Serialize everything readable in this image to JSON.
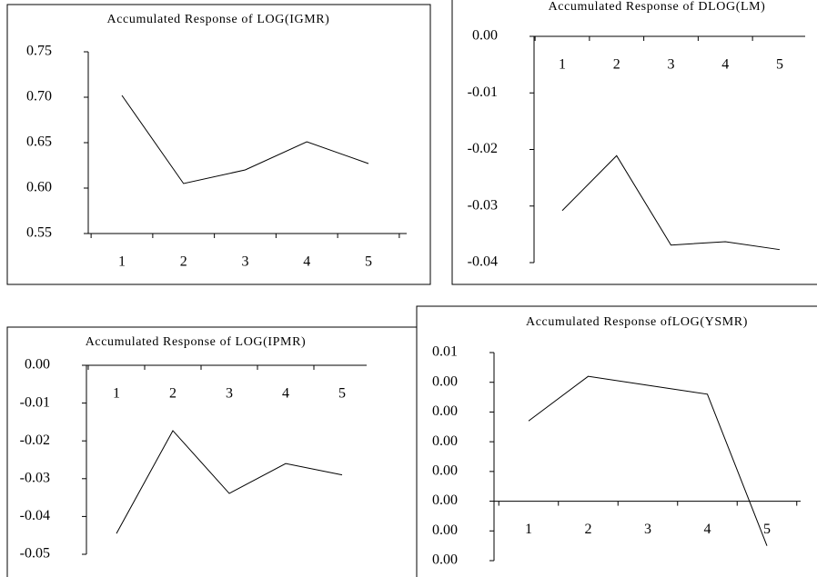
{
  "chart_data": [
    {
      "type": "line",
      "title": "Accumulated Response of LOG(IGMR)",
      "categories": [
        "1",
        "2",
        "3",
        "4",
        "5"
      ],
      "values": [
        0.702,
        0.605,
        0.62,
        0.651,
        0.627
      ],
      "color": "#000000",
      "ylim": [
        0.55,
        0.75
      ],
      "yticks": [
        0.55,
        {
          "value": 0.6,
          "label": "0.60"
        },
        0.65,
        {
          "value": 0.7,
          "label": "0.70"
        },
        0.75
      ]
    },
    {
      "type": "line",
      "title": "Accumulated Response of DLOG(LM)",
      "categories": [
        "1",
        "2",
        "3",
        "4",
        "5"
      ],
      "values": [
        -0.0308,
        -0.0211,
        -0.0369,
        -0.0363,
        -0.0377
      ],
      "color": "#000000",
      "ylim": [
        -0.04,
        0
      ],
      "yticks": [
        -0.04,
        -0.03,
        -0.02,
        -0.01,
        {
          "value": 0,
          "label": "0.00"
        }
      ]
    },
    {
      "type": "line",
      "title": "Accumulated Response of LOG(IPMR)",
      "categories": [
        "1",
        "2",
        "3",
        "4",
        "5"
      ],
      "values": [
        -0.0445,
        -0.0173,
        -0.0339,
        -0.026,
        -0.029
      ],
      "color": "#000000",
      "ylim": [
        -0.05,
        0
      ],
      "yticks": [
        -0.05,
        -0.04,
        -0.03,
        -0.02,
        -0.01,
        {
          "value": 0,
          "label": "0.00"
        }
      ]
    },
    {
      "type": "line",
      "title": "Accumulated Response ofLOG(YSMR)",
      "categories": [
        "1",
        "2",
        "3",
        "4",
        "5"
      ],
      "values": [
        0.0027,
        0.0042,
        0.0039,
        0.0036,
        -0.0015
      ],
      "color": "#000000",
      "ylim": [
        -0.002,
        0.005
      ],
      "yticks": [
        {
          "value": -0.002,
          "label": "0.00"
        },
        {
          "value": -0.001,
          "label": "0.00"
        },
        {
          "value": 0,
          "label": "0.00"
        },
        {
          "value": 0.001,
          "label": "0.00"
        },
        {
          "value": 0.002,
          "label": "0.00"
        },
        {
          "value": 0.003,
          "label": "0.00"
        },
        {
          "value": 0.004,
          "label": "0.00"
        },
        {
          "value": 0.005,
          "label": "0.01"
        }
      ]
    }
  ]
}
